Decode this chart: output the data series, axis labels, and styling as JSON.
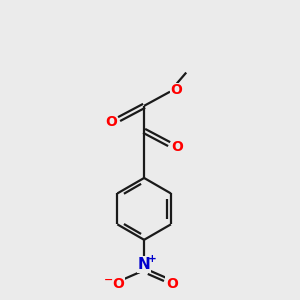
{
  "bg_color": "#ebebeb",
  "bond_color": "#1a1a1a",
  "oxygen_color": "#ff0000",
  "nitrogen_color": "#0000cd",
  "line_width": 1.6,
  "figsize": [
    3.0,
    3.0
  ],
  "dpi": 100,
  "xlim": [
    0,
    10
  ],
  "ylim": [
    0,
    10
  ]
}
